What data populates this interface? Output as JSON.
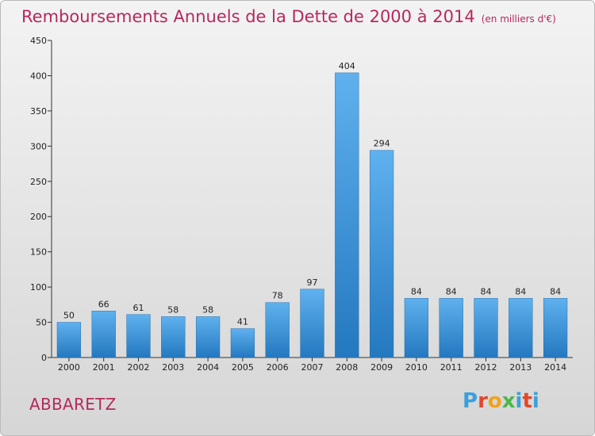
{
  "header": {
    "title": "Remboursements Annuels de la Dette de 2000 à 2014",
    "subtitle": "(en milliers d'€)"
  },
  "footer": {
    "commune": "ABBARETZ",
    "logo_letters": [
      "P",
      "r",
      "o",
      "x",
      "i",
      "t",
      "i"
    ],
    "logo_colors": [
      "#3aa0dd",
      "#e2482c",
      "#f1a21c",
      "#4bb848",
      "#3aa0dd",
      "#e2482c",
      "#3aa0dd"
    ]
  },
  "chart_data": {
    "type": "bar",
    "categories": [
      "2000",
      "2001",
      "2002",
      "2003",
      "2004",
      "2005",
      "2006",
      "2007",
      "2008",
      "2009",
      "2010",
      "2011",
      "2012",
      "2013",
      "2014"
    ],
    "values": [
      50,
      66,
      61,
      58,
      58,
      41,
      78,
      97,
      404,
      294,
      84,
      84,
      84,
      84,
      84
    ],
    "data_labels": [
      "50",
      "66",
      "61",
      "58",
      "58",
      "41",
      "78",
      "97",
      "404",
      "294",
      "84",
      "84",
      "84",
      "84",
      "84"
    ],
    "title": "Remboursements Annuels de la Dette de 2000 à 2014",
    "ylim": [
      0,
      450
    ],
    "yticks": [
      0,
      50,
      100,
      150,
      200,
      250,
      300,
      350,
      400,
      450
    ],
    "grid": false,
    "bar_color": "#3a8fd6"
  }
}
